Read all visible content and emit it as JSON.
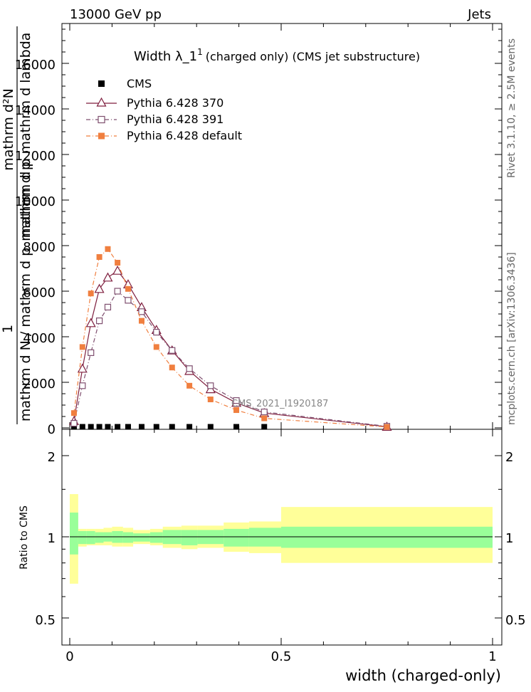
{
  "header": {
    "left": "13000 GeV pp",
    "right": "Jets"
  },
  "side_labels": {
    "rivet": "Rivet 3.1.10, ≥ 2.5M events",
    "mcplots": "mcplots.cern.ch [arXiv:1306.3436]"
  },
  "chart_data": {
    "type": "line",
    "title": "Width λ_1¹ (charged only) (CMS jet substructure)",
    "title_main": "Width λ_1",
    "title_sup": "1",
    "title_suffix": "(charged only) (CMS jet substructure)",
    "analysis_label": "CMS_2021_I1920187",
    "xlabel": "width (charged-only)",
    "ylabel_numerator": "mathrm d²N",
    "ylabel_denominator": "mathrm d p",
    "ylabel_overlay": "mathrm d p mathrm d lambda",
    "ylabel_lower": "mathrm d N / mathrm d p",
    "ylabel_one": "1",
    "xlim": [
      0,
      1
    ],
    "ylim": [
      0,
      18000
    ],
    "ratio_ylim": [
      0.5,
      2
    ],
    "ratio_ylabel": "Ratio to CMS",
    "x_ticks": [
      "0",
      "0.5",
      "1"
    ],
    "y_ticks": [
      "0",
      "2000",
      "4000",
      "6000",
      "8000",
      "10000",
      "12000",
      "14000",
      "16000"
    ],
    "ratio_ticks": [
      "0.5",
      "1",
      "2"
    ],
    "legend_position": "top-left",
    "legend": [
      "CMS",
      "Pythia 6.428 370",
      "Pythia 6.428 391",
      "Pythia 6.428 default"
    ],
    "bins": [
      0.01,
      0.03,
      0.05,
      0.07,
      0.09,
      0.113,
      0.138,
      0.17,
      0.205,
      0.242,
      0.283,
      0.333,
      0.394,
      0.46,
      0.75
    ],
    "bin_edges": [
      0,
      0.02,
      0.04,
      0.06,
      0.08,
      0.1,
      0.126,
      0.15,
      0.19,
      0.22,
      0.264,
      0.302,
      0.364,
      0.424,
      0.5,
      1.0
    ],
    "series": [
      {
        "name": "CMS",
        "color": "#000000",
        "marker": "filled-square",
        "values": [
          45,
          45,
          45,
          45,
          45,
          45,
          45,
          45,
          45,
          45,
          45,
          45,
          45,
          45,
          45
        ]
      },
      {
        "name": "Pythia 6.428 370",
        "color": "#7f1f3f",
        "marker": "open-triangle",
        "dash": "solid",
        "values": [
          300,
          2600,
          4600,
          6100,
          6600,
          6900,
          6300,
          5300,
          4300,
          3400,
          2500,
          1700,
          1100,
          650,
          50
        ]
      },
      {
        "name": "Pythia 6.428 391",
        "color": "#7f4f6f",
        "marker": "open-square",
        "dash": "dash-dot",
        "values": [
          200,
          1850,
          3300,
          4700,
          5300,
          6000,
          5600,
          5100,
          4200,
          3400,
          2600,
          1850,
          1200,
          700,
          70
        ]
      },
      {
        "name": "Pythia 6.428 default",
        "color": "#f07f3f",
        "marker": "filled-square",
        "dash": "dash-dot",
        "values": [
          650,
          3550,
          5900,
          7500,
          7850,
          7250,
          6100,
          4700,
          3550,
          2650,
          1850,
          1250,
          780,
          420,
          40
        ]
      }
    ],
    "ratio_band_inner": [
      [
        0.86,
        1.23
      ],
      [
        0.94,
        1.05
      ],
      [
        0.94,
        1.05
      ],
      [
        0.95,
        1.04
      ],
      [
        0.96,
        1.04
      ],
      [
        0.95,
        1.05
      ],
      [
        0.95,
        1.04
      ],
      [
        0.96,
        1.03
      ],
      [
        0.95,
        1.04
      ],
      [
        0.94,
        1.06
      ],
      [
        0.93,
        1.06
      ],
      [
        0.94,
        1.06
      ],
      [
        0.92,
        1.07
      ],
      [
        0.92,
        1.08
      ],
      [
        0.91,
        1.09
      ]
    ],
    "ratio_band_outer": [
      [
        0.67,
        1.44
      ],
      [
        0.92,
        1.07
      ],
      [
        0.93,
        1.07
      ],
      [
        0.93,
        1.07
      ],
      [
        0.93,
        1.08
      ],
      [
        0.92,
        1.09
      ],
      [
        0.92,
        1.08
      ],
      [
        0.94,
        1.06
      ],
      [
        0.93,
        1.07
      ],
      [
        0.91,
        1.09
      ],
      [
        0.9,
        1.1
      ],
      [
        0.91,
        1.1
      ],
      [
        0.88,
        1.13
      ],
      [
        0.87,
        1.14
      ],
      [
        0.8,
        1.29
      ]
    ]
  }
}
